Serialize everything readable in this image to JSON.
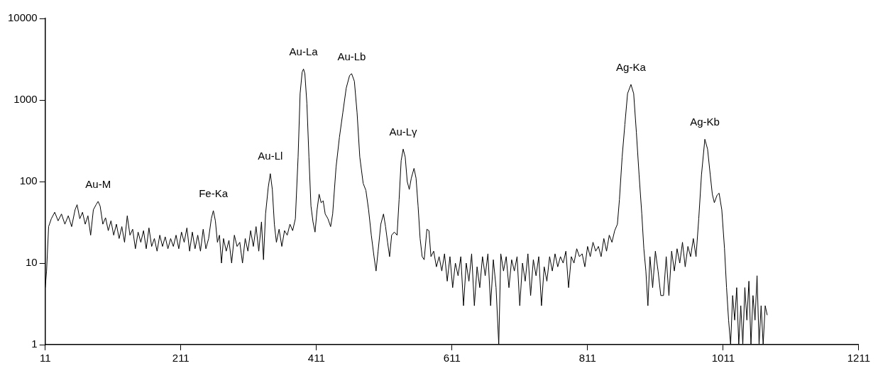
{
  "chart_data": {
    "type": "line",
    "log": "y",
    "grid": false,
    "legend": false,
    "marker": "none",
    "line_style": "solid",
    "color": "#000000",
    "xlim": [
      11,
      1211
    ],
    "xticks": [
      11,
      211,
      411,
      611,
      811,
      1011,
      1211
    ],
    "ylim": [
      1,
      10000
    ],
    "yticks": [
      1,
      10,
      100,
      1000,
      10000
    ],
    "annotations": [
      {
        "text": "Au-M",
        "x": 89,
        "y": 57
      },
      {
        "text": "Fe-Ka",
        "x": 259,
        "y": 44
      },
      {
        "text": "Au-Ll",
        "x": 343,
        "y": 125
      },
      {
        "text": "Au-La",
        "x": 392,
        "y": 2400
      },
      {
        "text": "Au-Lb",
        "x": 463,
        "y": 2100
      },
      {
        "text": "Au-Lγ",
        "x": 539,
        "y": 250
      },
      {
        "text": "Ag-Ka",
        "x": 875,
        "y": 1550
      },
      {
        "text": "Ag-Kb",
        "x": 984,
        "y": 330
      }
    ],
    "x": [
      11,
      13,
      16,
      20,
      25,
      30,
      35,
      40,
      45,
      50,
      55,
      58,
      62,
      66,
      70,
      74,
      78,
      82,
      86,
      89,
      92,
      96,
      100,
      104,
      108,
      112,
      116,
      120,
      124,
      128,
      132,
      136,
      140,
      144,
      148,
      152,
      156,
      160,
      164,
      168,
      172,
      176,
      180,
      184,
      188,
      192,
      196,
      200,
      204,
      208,
      212,
      216,
      220,
      224,
      228,
      232,
      236,
      240,
      244,
      248,
      252,
      256,
      259,
      262,
      265,
      268,
      271,
      274,
      278,
      282,
      286,
      290,
      294,
      298,
      302,
      306,
      310,
      314,
      318,
      322,
      326,
      330,
      333,
      336,
      340,
      343,
      346,
      349,
      352,
      356,
      360,
      364,
      368,
      372,
      376,
      380,
      384,
      387,
      390,
      392,
      394,
      397,
      400,
      403,
      406,
      409,
      412,
      415,
      418,
      421,
      424,
      428,
      432,
      435,
      440,
      445,
      450,
      455,
      460,
      463,
      467,
      471,
      475,
      480,
      484,
      488,
      492,
      496,
      499,
      502,
      506,
      510,
      513,
      516,
      519,
      522,
      526,
      530,
      533,
      536,
      539,
      542,
      545,
      548,
      551,
      555,
      558,
      561,
      564,
      567,
      570,
      574,
      577,
      580,
      584,
      588,
      592,
      596,
      600,
      604,
      608,
      612,
      616,
      620,
      624,
      628,
      632,
      636,
      640,
      644,
      648,
      652,
      656,
      660,
      664,
      668,
      672,
      676,
      680,
      683,
      687,
      691,
      695,
      699,
      703,
      707,
      711,
      715,
      719,
      723,
      727,
      731,
      735,
      739,
      743,
      747,
      751,
      755,
      759,
      763,
      767,
      771,
      775,
      779,
      783,
      787,
      791,
      795,
      799,
      803,
      807,
      811,
      815,
      819,
      823,
      827,
      831,
      835,
      839,
      843,
      847,
      851,
      855,
      858,
      862,
      866,
      870,
      875,
      879,
      883,
      887,
      891,
      894,
      897,
      900,
      903,
      907,
      911,
      915,
      919,
      923,
      927,
      931,
      935,
      939,
      943,
      947,
      951,
      955,
      959,
      963,
      967,
      971,
      975,
      979,
      984,
      988,
      992,
      995,
      998,
      1002,
      1005,
      1009,
      1013,
      1016,
      1019,
      1022,
      1025,
      1028,
      1031,
      1034,
      1037,
      1040,
      1043,
      1046,
      1049,
      1052,
      1055,
      1058,
      1061,
      1064,
      1067,
      1070,
      1073,
      1076
    ],
    "values": [
      5,
      8,
      28,
      35,
      42,
      33,
      40,
      30,
      38,
      28,
      45,
      52,
      35,
      42,
      30,
      38,
      22,
      45,
      52,
      57,
      50,
      30,
      36,
      25,
      33,
      22,
      30,
      20,
      28,
      18,
      38,
      22,
      26,
      15,
      24,
      18,
      25,
      15,
      27,
      16,
      20,
      14,
      22,
      16,
      21,
      15,
      20,
      16,
      22,
      15,
      24,
      18,
      27,
      14,
      24,
      15,
      22,
      14,
      26,
      15,
      20,
      35,
      44,
      33,
      18,
      22,
      10,
      20,
      14,
      19,
      10,
      22,
      16,
      18,
      10,
      20,
      14,
      25,
      16,
      28,
      14,
      32,
      11,
      40,
      85,
      125,
      80,
      30,
      18,
      26,
      16,
      25,
      22,
      30,
      25,
      35,
      200,
      1200,
      2200,
      2400,
      2100,
      900,
      200,
      50,
      32,
      24,
      45,
      70,
      55,
      58,
      40,
      35,
      28,
      40,
      150,
      350,
      700,
      1400,
      2000,
      2100,
      1700,
      700,
      200,
      95,
      78,
      45,
      22,
      12,
      8,
      14,
      30,
      40,
      28,
      18,
      12,
      22,
      24,
      22,
      60,
      180,
      250,
      200,
      100,
      80,
      110,
      145,
      110,
      50,
      20,
      12,
      11,
      26,
      25,
      12,
      14,
      9,
      12,
      8,
      13,
      6,
      12,
      5,
      10,
      7,
      12,
      3,
      10,
      6,
      13,
      3,
      9,
      5,
      12,
      7,
      13,
      3,
      11,
      5,
      1,
      13,
      8,
      12,
      5,
      11,
      8,
      12,
      3,
      10,
      6,
      13,
      4,
      11,
      7,
      12,
      3,
      9,
      6,
      12,
      8,
      13,
      9,
      12,
      10,
      14,
      5,
      12,
      10,
      15,
      12,
      13,
      9,
      16,
      12,
      18,
      14,
      16,
      12,
      20,
      14,
      22,
      18,
      25,
      30,
      60,
      200,
      500,
      1200,
      1550,
      1200,
      400,
      120,
      40,
      15,
      8,
      3,
      12,
      5,
      14,
      8,
      4,
      4,
      12,
      4,
      14,
      8,
      15,
      10,
      18,
      9,
      16,
      12,
      20,
      12,
      35,
      120,
      330,
      250,
      120,
      70,
      55,
      68,
      72,
      45,
      15,
      5,
      2,
      1,
      4,
      2,
      5,
      1,
      3,
      1,
      5,
      2,
      6,
      1,
      4,
      2,
      7,
      1,
      3,
      1,
      3,
      2.3
    ]
  }
}
